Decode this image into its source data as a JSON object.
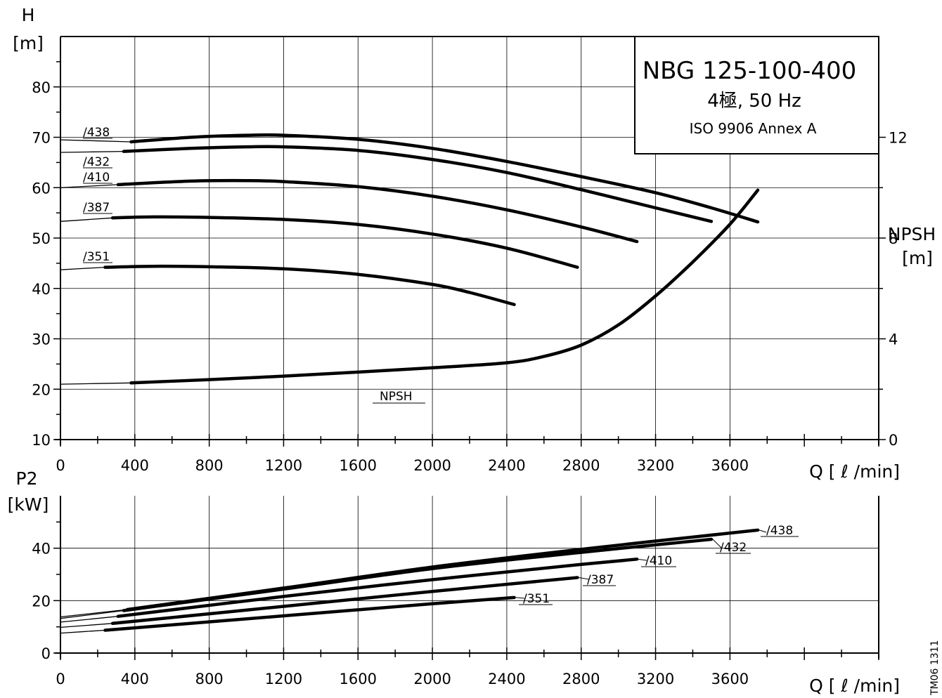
{
  "title": {
    "model": "NBG 125-100-400",
    "poles": "4極, 50 Hz",
    "standard": "ISO 9906 Annex A"
  },
  "drawing_code": "TM06 1311",
  "chart_data": [
    {
      "type": "line",
      "id": "head",
      "ylabel_line1": "H",
      "ylabel_line2": "[m]",
      "xlabel": "Q [ ℓ /min]",
      "xlim": [
        0,
        4400
      ],
      "ylim": [
        10,
        90
      ],
      "xticks": [
        0,
        400,
        800,
        1200,
        1600,
        2000,
        2400,
        2800,
        3200,
        3600
      ],
      "yticks": [
        10,
        20,
        30,
        40,
        50,
        60,
        70,
        80
      ],
      "grid": true,
      "series": [
        {
          "name": "/438",
          "x": [
            380,
            700,
            1000,
            1200,
            1600,
            2000,
            2400,
            2800,
            3200,
            3500,
            3750
          ],
          "y": [
            69.1,
            70.0,
            70.4,
            70.4,
            69.6,
            67.8,
            65.2,
            62.2,
            59.0,
            56.0,
            53.2
          ],
          "tail": [
            [
              0,
              69.5
            ],
            [
              380,
              69.1
            ]
          ]
        },
        {
          "name": "/432",
          "x": [
            340,
            700,
            1000,
            1200,
            1600,
            2000,
            2400,
            2800,
            3200,
            3500
          ],
          "y": [
            67.2,
            67.8,
            68.1,
            68.1,
            67.4,
            65.6,
            63.0,
            59.6,
            56.0,
            53.3
          ],
          "tail": [
            [
              0,
              67.0
            ],
            [
              340,
              67.2
            ]
          ]
        },
        {
          "name": "/410",
          "x": [
            310,
            700,
            1000,
            1200,
            1600,
            2000,
            2400,
            2800,
            3100
          ],
          "y": [
            60.6,
            61.3,
            61.4,
            61.2,
            60.2,
            58.3,
            55.6,
            52.2,
            49.3
          ],
          "tail": [
            [
              0,
              60.0
            ],
            [
              310,
              60.6
            ]
          ]
        },
        {
          "name": "/387",
          "x": [
            280,
            500,
            800,
            1200,
            1600,
            2000,
            2400,
            2780
          ],
          "y": [
            54.0,
            54.2,
            54.1,
            53.7,
            52.7,
            50.8,
            48.0,
            44.2
          ],
          "tail": [
            [
              0,
              53.3
            ],
            [
              280,
              54.0
            ]
          ]
        },
        {
          "name": "/351",
          "x": [
            240,
            500,
            800,
            1200,
            1600,
            2000,
            2200,
            2440
          ],
          "y": [
            44.2,
            44.4,
            44.3,
            43.9,
            42.8,
            40.8,
            39.2,
            36.8
          ],
          "tail": [
            [
              0,
              43.7
            ],
            [
              240,
              44.2
            ]
          ]
        }
      ]
    },
    {
      "type": "line",
      "id": "npsh",
      "ylabel_line1": "NPSH",
      "ylabel_line2": "[m]",
      "ylim": [
        0,
        16
      ],
      "yticks": [
        0,
        4,
        8,
        12
      ],
      "series": [
        {
          "name": "NPSH",
          "x": [
            380,
            800,
            1200,
            1600,
            2000,
            2400,
            2600,
            2800,
            3000,
            3200,
            3400,
            3600,
            3750
          ],
          "y": [
            2.25,
            2.38,
            2.52,
            2.68,
            2.85,
            3.05,
            3.3,
            3.75,
            4.55,
            5.7,
            7.05,
            8.55,
            9.9
          ],
          "tail": [
            [
              0,
              2.2
            ],
            [
              380,
              2.25
            ]
          ]
        }
      ]
    },
    {
      "type": "line",
      "id": "power",
      "ylabel_line1": "P2",
      "ylabel_line2": "[kW]",
      "xlabel": "Q [ ℓ /min]",
      "xlim": [
        0,
        4400
      ],
      "ylim": [
        0,
        60
      ],
      "xticks": [
        0,
        400,
        800,
        1200,
        1600,
        2000,
        2400,
        2800,
        3200,
        3600
      ],
      "yticks": [
        0,
        20,
        40
      ],
      "grid": true,
      "series": [
        {
          "name": "/438",
          "x": [
            360,
            1200,
            2000,
            2800,
            3750
          ],
          "y": [
            16.6,
            24.8,
            32.8,
            39.6,
            46.9
          ],
          "tail": [
            [
              0,
              13.8
            ],
            [
              360,
              16.6
            ]
          ]
        },
        {
          "name": "/432",
          "x": [
            340,
            1200,
            2000,
            2800,
            3500
          ],
          "y": [
            16.2,
            24.4,
            32.2,
            38.4,
            43.4
          ],
          "tail": [
            [
              0,
              13.2
            ],
            [
              340,
              16.2
            ]
          ]
        },
        {
          "name": "/410",
          "x": [
            310,
            1200,
            2000,
            2800,
            3100
          ],
          "y": [
            14.0,
            21.6,
            28.0,
            33.8,
            35.8
          ],
          "tail": [
            [
              0,
              11.8
            ],
            [
              310,
              14.0
            ]
          ]
        },
        {
          "name": "/387",
          "x": [
            280,
            1200,
            2000,
            2780
          ],
          "y": [
            11.3,
            17.8,
            23.5,
            28.8
          ],
          "tail": [
            [
              0,
              9.8
            ],
            [
              280,
              11.3
            ]
          ]
        },
        {
          "name": "/351",
          "x": [
            240,
            1200,
            2000,
            2440
          ],
          "y": [
            8.7,
            14.2,
            18.8,
            21.2
          ],
          "tail": [
            [
              0,
              7.6
            ],
            [
              240,
              8.7
            ]
          ]
        }
      ]
    }
  ]
}
